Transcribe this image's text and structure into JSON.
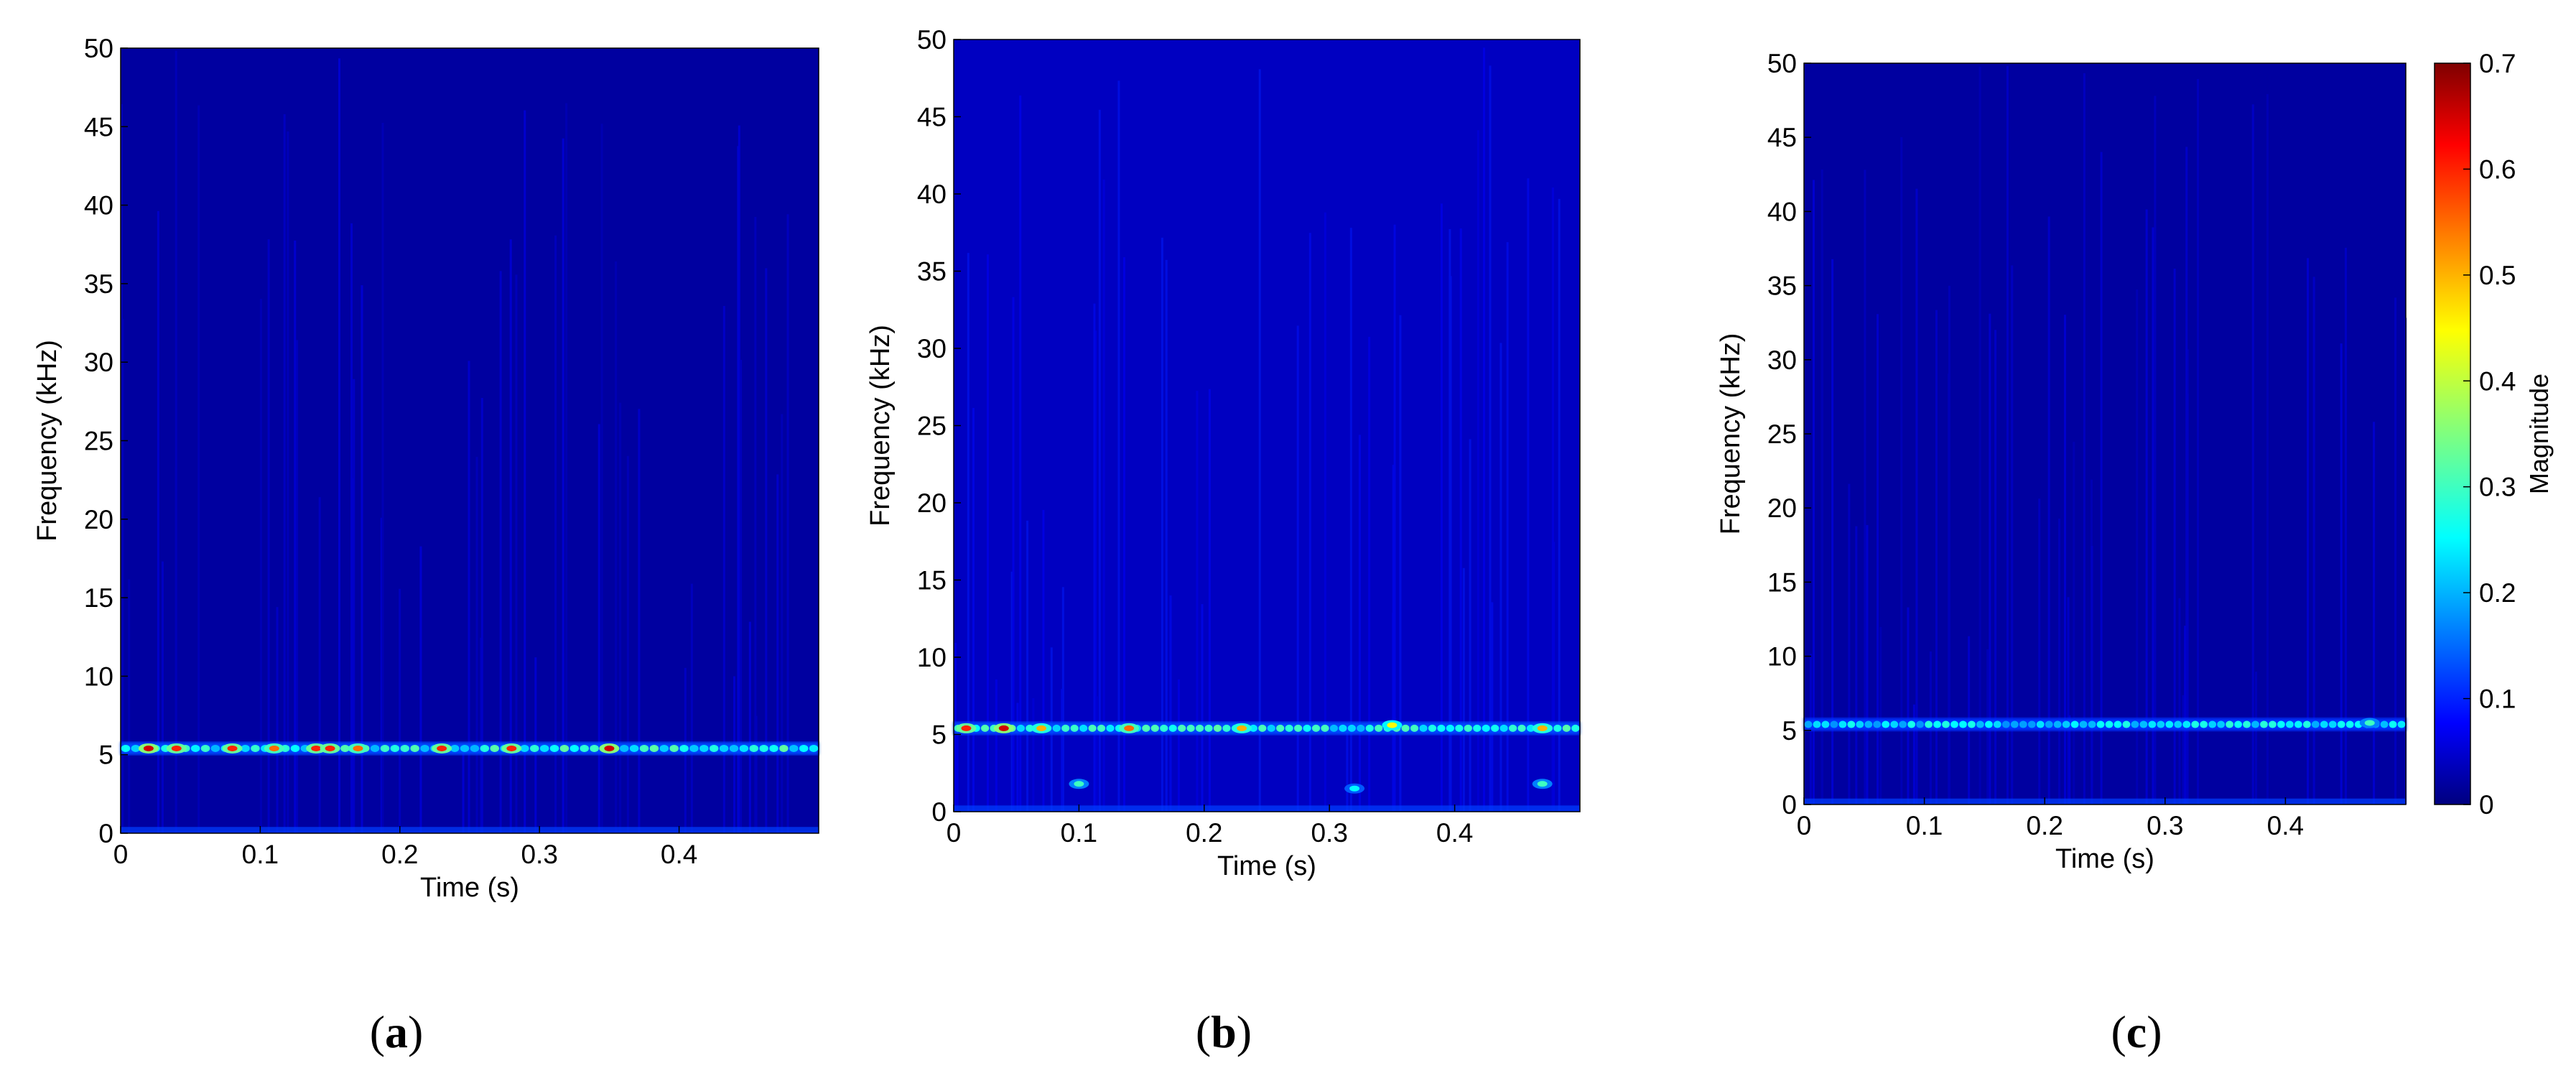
{
  "chart_data": [
    {
      "type": "heatmap",
      "panel_label": "a",
      "xlabel": "Time (s)",
      "ylabel": "Frequency (kHz)",
      "xlim": [
        0,
        0.5
      ],
      "ylim": [
        0,
        50
      ],
      "x_ticks": [
        "0",
        "0.1",
        "0.2",
        "0.3",
        "0.4"
      ],
      "y_ticks": [
        "0",
        "5",
        "10",
        "15",
        "20",
        "25",
        "30",
        "35",
        "40",
        "45",
        "50"
      ],
      "background_magnitude": 0.02,
      "bands": [
        {
          "frequency_khz": 5.4,
          "magnitude": 0.25
        }
      ],
      "hotspots": [
        {
          "time_s": 0.02,
          "frequency_khz": 5.4,
          "magnitude": 0.65
        },
        {
          "time_s": 0.04,
          "frequency_khz": 5.4,
          "magnitude": 0.6
        },
        {
          "time_s": 0.08,
          "frequency_khz": 5.4,
          "magnitude": 0.6
        },
        {
          "time_s": 0.11,
          "frequency_khz": 5.4,
          "magnitude": 0.55
        },
        {
          "time_s": 0.14,
          "frequency_khz": 5.4,
          "magnitude": 0.6
        },
        {
          "time_s": 0.15,
          "frequency_khz": 5.4,
          "magnitude": 0.6
        },
        {
          "time_s": 0.17,
          "frequency_khz": 5.4,
          "magnitude": 0.55
        },
        {
          "time_s": 0.23,
          "frequency_khz": 5.4,
          "magnitude": 0.6
        },
        {
          "time_s": 0.28,
          "frequency_khz": 5.4,
          "magnitude": 0.6
        },
        {
          "time_s": 0.35,
          "frequency_khz": 5.4,
          "magnitude": 0.65
        }
      ]
    },
    {
      "type": "heatmap",
      "panel_label": "b",
      "xlabel": "Time (s)",
      "ylabel": "Frequency (kHz)",
      "xlim": [
        0,
        0.5
      ],
      "ylim": [
        0,
        50
      ],
      "x_ticks": [
        "0",
        "0.1",
        "0.2",
        "0.3",
        "0.4"
      ],
      "y_ticks": [
        "0",
        "5",
        "10",
        "15",
        "20",
        "25",
        "30",
        "35",
        "40",
        "45",
        "50"
      ],
      "background_magnitude": 0.04,
      "bands": [
        {
          "frequency_khz": 5.4,
          "magnitude": 0.25
        }
      ],
      "hotspots": [
        {
          "time_s": 0.01,
          "frequency_khz": 5.4,
          "magnitude": 0.6
        },
        {
          "time_s": 0.04,
          "frequency_khz": 5.4,
          "magnitude": 0.65
        },
        {
          "time_s": 0.07,
          "frequency_khz": 5.4,
          "magnitude": 0.5
        },
        {
          "time_s": 0.14,
          "frequency_khz": 5.4,
          "magnitude": 0.55
        },
        {
          "time_s": 0.23,
          "frequency_khz": 5.4,
          "magnitude": 0.5
        },
        {
          "time_s": 0.35,
          "frequency_khz": 5.6,
          "magnitude": 0.45
        },
        {
          "time_s": 0.47,
          "frequency_khz": 5.4,
          "magnitude": 0.5
        },
        {
          "time_s": 0.1,
          "frequency_khz": 1.8,
          "magnitude": 0.3
        },
        {
          "time_s": 0.47,
          "frequency_khz": 1.8,
          "magnitude": 0.3
        },
        {
          "time_s": 0.32,
          "frequency_khz": 1.5,
          "magnitude": 0.25
        }
      ]
    },
    {
      "type": "heatmap",
      "panel_label": "c",
      "xlabel": "Time (s)",
      "ylabel": "Frequency (kHz)",
      "xlim": [
        0,
        0.5
      ],
      "ylim": [
        0,
        50
      ],
      "x_ticks": [
        "0",
        "0.1",
        "0.2",
        "0.3",
        "0.4"
      ],
      "y_ticks": [
        "0",
        "5",
        "10",
        "15",
        "20",
        "25",
        "30",
        "35",
        "40",
        "45",
        "50"
      ],
      "background_magnitude": 0.02,
      "bands": [
        {
          "frequency_khz": 5.4,
          "magnitude": 0.22
        }
      ],
      "hotspots": [
        {
          "time_s": 0.47,
          "frequency_khz": 5.5,
          "magnitude": 0.3
        }
      ]
    }
  ],
  "colorbar": {
    "label": "Magnitude",
    "range": [
      0,
      0.7
    ],
    "ticks": [
      "0",
      "0.1",
      "0.2",
      "0.3",
      "0.4",
      "0.5",
      "0.6",
      "0.7"
    ],
    "colormap": "jet"
  },
  "panel_labels": [
    "a",
    "b",
    "c"
  ]
}
